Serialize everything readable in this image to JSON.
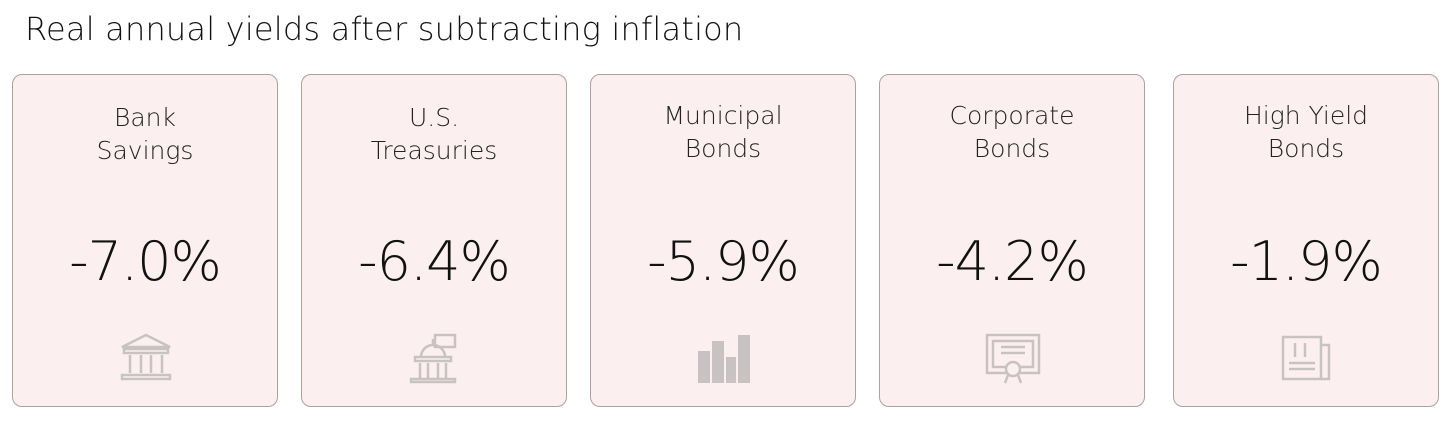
{
  "header": {
    "title": "Real annual yields after subtracting inflation"
  },
  "cards": [
    {
      "title_lines": [
        "Bank",
        "Savings"
      ],
      "value": "-7.0%"
    },
    {
      "title_lines": [
        "U.S.",
        "Treasuries"
      ],
      "value": "-6.4%"
    },
    {
      "title_lines": [
        "Municipal",
        "Bonds"
      ],
      "value": "-5.9%"
    },
    {
      "title_lines": [
        "Corporate",
        "Bonds"
      ],
      "value": "-4.2%"
    },
    {
      "title_lines": [
        "High Yield",
        "Bonds"
      ],
      "value": "-1.9%"
    }
  ]
}
